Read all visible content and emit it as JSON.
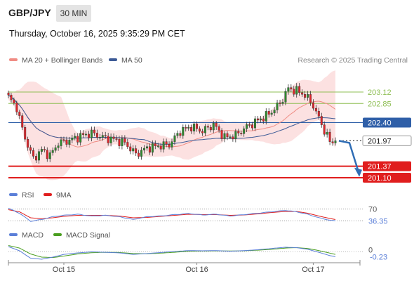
{
  "header": {
    "pair": "GBP/JPY",
    "timeframe": "30 MIN"
  },
  "datetime": "Thursday, October 16, 2025 9:35:29 PM CET",
  "credit": "Research © 2025 Trading Central",
  "colors": {
    "bull": "#2e8b2e",
    "bear": "#e0242a",
    "band_fill": "#fcdcdc",
    "ma20": "#f08c84",
    "ma50": "#3c5a96",
    "pivot": "#2f5fa8",
    "support": "#e01e1e",
    "resistance": "#8fbf55",
    "arrow": "#2f6db5",
    "rsi": "#5b7fd8",
    "rsi_ma": "#e01e1e",
    "macd": "#5b7fd8",
    "macd_signal": "#4a9e1f"
  },
  "chart_data": [
    {
      "type": "candlestick",
      "legend": [
        {
          "name": "MA 20 + Bollinger Bands",
          "color": "#f08c84"
        },
        {
          "name": "MA 50",
          "color": "#3c5a96"
        }
      ],
      "ylim": [
        200.95,
        203.55
      ],
      "levels": [
        {
          "value": 203.12,
          "label": "203.12",
          "role": "resistance"
        },
        {
          "value": 202.85,
          "label": "202.85",
          "role": "resistance"
        },
        {
          "value": 202.4,
          "label": "202.40",
          "role": "pivot"
        },
        {
          "value": 201.97,
          "label": "201.97",
          "role": "last"
        },
        {
          "value": 201.37,
          "label": "201.37",
          "role": "support"
        },
        {
          "value": 201.1,
          "label": "201.10",
          "role": "support"
        }
      ],
      "x_ticks": [
        {
          "label": "Oct 15",
          "index": 20
        },
        {
          "label": "Oct 16",
          "index": 68
        },
        {
          "label": "Oct 17",
          "index": 110
        }
      ],
      "close_path": [
        [
          0,
          203.0
        ],
        [
          3,
          202.75
        ],
        [
          5,
          202.25
        ],
        [
          7,
          201.85
        ],
        [
          9,
          201.55
        ],
        [
          12,
          201.75
        ],
        [
          15,
          201.62
        ],
        [
          18,
          201.92
        ],
        [
          22,
          201.98
        ],
        [
          26,
          202.08
        ],
        [
          30,
          202.15
        ],
        [
          34,
          202.05
        ],
        [
          38,
          202.0
        ],
        [
          42,
          201.92
        ],
        [
          46,
          201.65
        ],
        [
          50,
          201.8
        ],
        [
          54,
          201.85
        ],
        [
          58,
          201.88
        ],
        [
          62,
          202.2
        ],
        [
          66,
          202.3
        ],
        [
          70,
          202.2
        ],
        [
          74,
          202.35
        ],
        [
          78,
          202.05
        ],
        [
          82,
          202.1
        ],
        [
          86,
          202.3
        ],
        [
          90,
          202.45
        ],
        [
          94,
          202.6
        ],
        [
          98,
          202.85
        ],
        [
          101,
          203.2
        ],
        [
          104,
          203.15
        ],
        [
          107,
          203.05
        ],
        [
          110,
          202.8
        ],
        [
          113,
          202.35
        ],
        [
          116,
          201.95
        ],
        [
          118,
          201.9
        ]
      ],
      "last_price": 201.97,
      "projection": {
        "from": 201.97,
        "to": 201.22
      }
    },
    {
      "type": "line",
      "legend": [
        {
          "name": "RSI",
          "color": "#5b7fd8"
        },
        {
          "name": "9MA",
          "color": "#e01e1e"
        }
      ],
      "ylim": [
        25,
        85
      ],
      "reference": 70,
      "reference_label": "70",
      "last_label": "36.35",
      "series": [
        {
          "name": "RSI",
          "points": [
            [
              0,
              72
            ],
            [
              4,
              58
            ],
            [
              8,
              35
            ],
            [
              12,
              40
            ],
            [
              16,
              48
            ],
            [
              20,
              52
            ],
            [
              25,
              55
            ],
            [
              30,
              50
            ],
            [
              35,
              52
            ],
            [
              40,
              48
            ],
            [
              45,
              40
            ],
            [
              50,
              48
            ],
            [
              55,
              50
            ],
            [
              60,
              54
            ],
            [
              65,
              57
            ],
            [
              70,
              53
            ],
            [
              75,
              55
            ],
            [
              80,
              50
            ],
            [
              85,
              54
            ],
            [
              90,
              58
            ],
            [
              95,
              62
            ],
            [
              100,
              66
            ],
            [
              104,
              62
            ],
            [
              108,
              55
            ],
            [
              112,
              45
            ],
            [
              116,
              38
            ],
            [
              118,
              36.35
            ]
          ]
        },
        {
          "name": "9MA",
          "points": [
            [
              0,
              68
            ],
            [
              4,
              62
            ],
            [
              8,
              45
            ],
            [
              12,
              42
            ],
            [
              16,
              45
            ],
            [
              20,
              49
            ],
            [
              25,
              52
            ],
            [
              30,
              52
            ],
            [
              35,
              52
            ],
            [
              40,
              50
            ],
            [
              45,
              45
            ],
            [
              50,
              46
            ],
            [
              55,
              49
            ],
            [
              60,
              52
            ],
            [
              65,
              55
            ],
            [
              70,
              54
            ],
            [
              75,
              54
            ],
            [
              80,
              52
            ],
            [
              85,
              53
            ],
            [
              90,
              56
            ],
            [
              95,
              60
            ],
            [
              100,
              63
            ],
            [
              104,
              63
            ],
            [
              108,
              58
            ],
            [
              112,
              50
            ],
            [
              116,
              43
            ],
            [
              118,
              40
            ]
          ]
        }
      ]
    },
    {
      "type": "line",
      "legend": [
        {
          "name": "MACD",
          "color": "#5b7fd8"
        },
        {
          "name": "MACD Signal",
          "color": "#4a9e1f"
        }
      ],
      "ylim": [
        -0.45,
        0.45
      ],
      "reference": 0,
      "reference_label": "0",
      "last_label": "-0.23",
      "series": [
        {
          "name": "MACD",
          "points": [
            [
              0,
              0.25
            ],
            [
              4,
              0.05
            ],
            [
              8,
              -0.3
            ],
            [
              12,
              -0.35
            ],
            [
              16,
              -0.25
            ],
            [
              20,
              -0.12
            ],
            [
              25,
              -0.05
            ],
            [
              30,
              0.0
            ],
            [
              35,
              -0.02
            ],
            [
              40,
              -0.05
            ],
            [
              45,
              -0.12
            ],
            [
              50,
              -0.08
            ],
            [
              55,
              -0.03
            ],
            [
              60,
              0.02
            ],
            [
              65,
              0.06
            ],
            [
              70,
              0.05
            ],
            [
              75,
              0.06
            ],
            [
              80,
              0.03
            ],
            [
              85,
              0.06
            ],
            [
              90,
              0.1
            ],
            [
              95,
              0.16
            ],
            [
              100,
              0.22
            ],
            [
              104,
              0.2
            ],
            [
              108,
              0.12
            ],
            [
              112,
              -0.02
            ],
            [
              116,
              -0.18
            ],
            [
              118,
              -0.23
            ]
          ]
        },
        {
          "name": "MACD Signal",
          "points": [
            [
              0,
              0.3
            ],
            [
              4,
              0.18
            ],
            [
              8,
              -0.1
            ],
            [
              12,
              -0.25
            ],
            [
              16,
              -0.27
            ],
            [
              20,
              -0.2
            ],
            [
              25,
              -0.1
            ],
            [
              30,
              -0.04
            ],
            [
              35,
              -0.02
            ],
            [
              40,
              -0.03
            ],
            [
              45,
              -0.08
            ],
            [
              50,
              -0.09
            ],
            [
              55,
              -0.06
            ],
            [
              60,
              -0.02
            ],
            [
              65,
              0.03
            ],
            [
              70,
              0.04
            ],
            [
              75,
              0.05
            ],
            [
              80,
              0.04
            ],
            [
              85,
              0.05
            ],
            [
              90,
              0.08
            ],
            [
              95,
              0.12
            ],
            [
              100,
              0.18
            ],
            [
              104,
              0.2
            ],
            [
              108,
              0.16
            ],
            [
              112,
              0.06
            ],
            [
              116,
              -0.06
            ],
            [
              118,
              -0.12
            ]
          ]
        }
      ]
    }
  ]
}
